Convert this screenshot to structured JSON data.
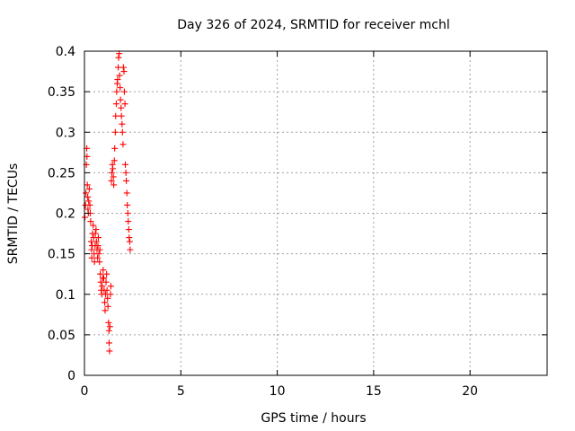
{
  "chart_data": {
    "type": "scatter",
    "title": "Day 326 of 2024, SRMTID for receiver mchl",
    "xlabel": "GPS time / hours",
    "ylabel": "SRMTID / TECUs",
    "xlim": [
      0,
      24
    ],
    "ylim": [
      0,
      0.4
    ],
    "xticks": [
      0,
      5,
      10,
      15,
      20
    ],
    "yticks": [
      0,
      0.05,
      0.1,
      0.15,
      0.2,
      0.25,
      0.3,
      0.35,
      0.4
    ],
    "xtick_labels": [
      "0",
      "5",
      "10",
      "15",
      "20"
    ],
    "ytick_labels": [
      "0",
      "0.05",
      "0.1",
      "0.15",
      "0.2",
      "0.25",
      "0.3",
      "0.35",
      "0.4"
    ],
    "grid": true,
    "marker": "+",
    "color": "#ff0000",
    "series": [
      {
        "name": "SRMTID",
        "points": [
          [
            0.02,
            0.195
          ],
          [
            0.05,
            0.21
          ],
          [
            0.08,
            0.225
          ],
          [
            0.1,
            0.26
          ],
          [
            0.12,
            0.28
          ],
          [
            0.13,
            0.27
          ],
          [
            0.15,
            0.235
          ],
          [
            0.17,
            0.22
          ],
          [
            0.18,
            0.205
          ],
          [
            0.2,
            0.2
          ],
          [
            0.22,
            0.215
          ],
          [
            0.25,
            0.23
          ],
          [
            0.28,
            0.21
          ],
          [
            0.3,
            0.2
          ],
          [
            0.32,
            0.19
          ],
          [
            0.35,
            0.165
          ],
          [
            0.37,
            0.155
          ],
          [
            0.38,
            0.145
          ],
          [
            0.4,
            0.16
          ],
          [
            0.42,
            0.175
          ],
          [
            0.45,
            0.185
          ],
          [
            0.47,
            0.17
          ],
          [
            0.5,
            0.15
          ],
          [
            0.52,
            0.14
          ],
          [
            0.55,
            0.16
          ],
          [
            0.57,
            0.175
          ],
          [
            0.6,
            0.18
          ],
          [
            0.62,
            0.165
          ],
          [
            0.65,
            0.155
          ],
          [
            0.68,
            0.145
          ],
          [
            0.7,
            0.16
          ],
          [
            0.72,
            0.17
          ],
          [
            0.75,
            0.15
          ],
          [
            0.78,
            0.14
          ],
          [
            0.8,
            0.155
          ],
          [
            0.82,
            0.125
          ],
          [
            0.85,
            0.115
          ],
          [
            0.87,
            0.105
          ],
          [
            0.9,
            0.1
          ],
          [
            0.92,
            0.11
          ],
          [
            0.95,
            0.12
          ],
          [
            0.97,
            0.13
          ],
          [
            1.0,
            0.12
          ],
          [
            1.02,
            0.105
          ],
          [
            1.05,
            0.09
          ],
          [
            1.07,
            0.08
          ],
          [
            1.1,
            0.1
          ],
          [
            1.12,
            0.115
          ],
          [
            1.15,
            0.125
          ],
          [
            1.17,
            0.105
          ],
          [
            1.2,
            0.095
          ],
          [
            1.22,
            0.085
          ],
          [
            1.25,
            0.065
          ],
          [
            1.27,
            0.055
          ],
          [
            1.28,
            0.04
          ],
          [
            1.3,
            0.03
          ],
          [
            1.32,
            0.06
          ],
          [
            1.35,
            0.1
          ],
          [
            1.37,
            0.11
          ],
          [
            1.4,
            0.24
          ],
          [
            1.42,
            0.25
          ],
          [
            1.45,
            0.26
          ],
          [
            1.47,
            0.255
          ],
          [
            1.5,
            0.245
          ],
          [
            1.52,
            0.235
          ],
          [
            1.55,
            0.265
          ],
          [
            1.57,
            0.28
          ],
          [
            1.6,
            0.3
          ],
          [
            1.62,
            0.32
          ],
          [
            1.65,
            0.335
          ],
          [
            1.67,
            0.35
          ],
          [
            1.7,
            0.36
          ],
          [
            1.72,
            0.365
          ],
          [
            1.75,
            0.38
          ],
          [
            1.77,
            0.392
          ],
          [
            1.8,
            0.397
          ],
          [
            1.82,
            0.37
          ],
          [
            1.85,
            0.355
          ],
          [
            1.87,
            0.34
          ],
          [
            1.9,
            0.33
          ],
          [
            1.92,
            0.32
          ],
          [
            1.95,
            0.31
          ],
          [
            1.97,
            0.3
          ],
          [
            2.0,
            0.285
          ],
          [
            2.02,
            0.38
          ],
          [
            2.05,
            0.375
          ],
          [
            2.07,
            0.35
          ],
          [
            2.1,
            0.335
          ],
          [
            2.12,
            0.26
          ],
          [
            2.15,
            0.25
          ],
          [
            2.17,
            0.24
          ],
          [
            2.2,
            0.225
          ],
          [
            2.22,
            0.21
          ],
          [
            2.25,
            0.2
          ],
          [
            2.27,
            0.19
          ],
          [
            2.3,
            0.18
          ],
          [
            2.32,
            0.17
          ],
          [
            2.35,
            0.165
          ],
          [
            2.37,
            0.155
          ]
        ]
      }
    ]
  }
}
